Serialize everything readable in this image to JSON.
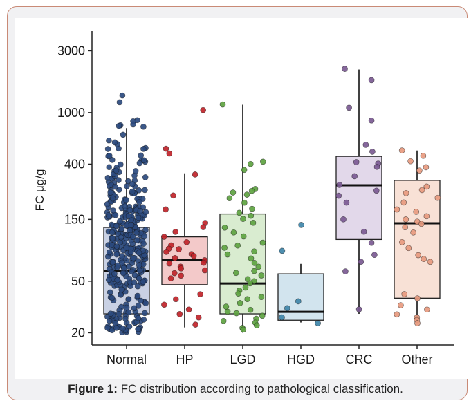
{
  "caption": {
    "label": "Figure 1:",
    "text": " FC distribution according to pathological classification."
  },
  "chart_data": {
    "type": "box",
    "ylabel": "FC μg/g",
    "xlabel": "",
    "yscale": "log",
    "ylim": [
      18,
      4000
    ],
    "yticks": [
      20,
      50,
      150,
      400,
      1000,
      3000
    ],
    "ytick_labels": [
      "20",
      "50",
      "150",
      "400",
      "1000",
      "3000"
    ],
    "categories": [
      "Normal",
      "HP",
      "LGD",
      "HGD",
      "CRC",
      "Other"
    ],
    "colors": {
      "Normal": {
        "fill": "#c9d1e4",
        "point": "#2b4a7e"
      },
      "HP": {
        "fill": "#f3c9c9",
        "point": "#c0242a"
      },
      "LGD": {
        "fill": "#d9ecd0",
        "point": "#5ea341"
      },
      "HGD": {
        "fill": "#d2e4ee",
        "point": "#3f86a9"
      },
      "CRC": {
        "fill": "#e2d8ea",
        "point": "#7b5a93"
      },
      "Other": {
        "fill": "#f8e1d6",
        "point": "#e79a7f"
      }
    },
    "boxes": [
      {
        "category": "Normal",
        "whisker_low": 20,
        "q1": 28,
        "median": 60,
        "q3": 130,
        "whisker_high": 760
      },
      {
        "category": "HP",
        "whisker_low": 22,
        "q1": 47,
        "median": 73,
        "q3": 110,
        "whisker_high": 340
      },
      {
        "category": "LGD",
        "whisker_low": 20,
        "q1": 28,
        "median": 48,
        "q3": 165,
        "whisker_high": 1150
      },
      {
        "category": "HGD",
        "whisker_low": 24,
        "q1": 25,
        "median": 29,
        "q3": 57,
        "whisker_high": 68
      },
      {
        "category": "CRC",
        "whisker_low": 28,
        "q1": 105,
        "median": 275,
        "q3": 460,
        "whisker_high": 2150
      },
      {
        "category": "Other",
        "whisker_low": 24,
        "q1": 37,
        "median": 140,
        "q3": 300,
        "whisker_high": 510
      }
    ],
    "points": [
      {
        "category": "Normal",
        "n": 320,
        "note": "dense cloud"
      },
      {
        "category": "HP",
        "values": [
          1050,
          520,
          480,
          330,
          230,
          180,
          140,
          130,
          120,
          110,
          100,
          95,
          90,
          88,
          85,
          80,
          78,
          75,
          72,
          70,
          68,
          65,
          62,
          60,
          58,
          55,
          52,
          40,
          36,
          33,
          30,
          28,
          26,
          23
        ]
      },
      {
        "category": "LGD",
        "values": [
          1150,
          420,
          400,
          360,
          260,
          250,
          240,
          230,
          220,
          200,
          180,
          170,
          160,
          150,
          140,
          130,
          120,
          110,
          100,
          95,
          90,
          85,
          80,
          75,
          70,
          65,
          60,
          58,
          55,
          52,
          50,
          48,
          45,
          42,
          40,
          38,
          36,
          34,
          32,
          30,
          29,
          28,
          27,
          26,
          25,
          24,
          23,
          22,
          21
        ]
      },
      {
        "category": "HGD",
        "values": [
          135,
          85,
          35,
          31,
          26,
          24
        ]
      },
      {
        "category": "CRC",
        "values": [
          2150,
          1800,
          1100,
          860,
          560,
          500,
          420,
          400,
          380,
          320,
          280,
          250,
          230,
          200,
          150,
          120,
          100,
          80,
          70,
          60,
          30
        ]
      },
      {
        "category": "Other",
        "values": [
          510,
          470,
          420,
          380,
          360,
          270,
          250,
          240,
          220,
          200,
          180,
          170,
          160,
          150,
          145,
          140,
          130,
          120,
          100,
          90,
          80,
          75,
          70,
          40,
          37,
          33,
          30,
          28,
          26,
          25,
          24
        ]
      }
    ]
  }
}
